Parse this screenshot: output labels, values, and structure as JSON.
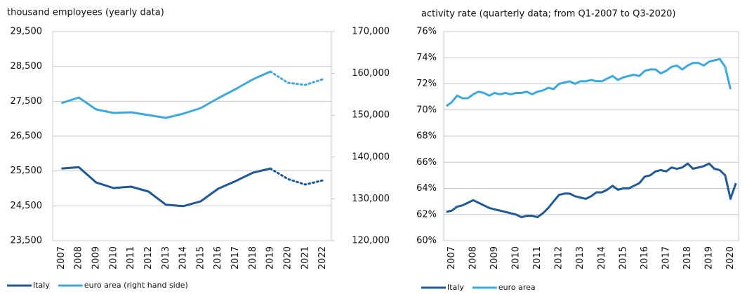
{
  "chart_data": [
    {
      "type": "line",
      "title": "thousand employees (yearly data)",
      "categories": [
        "2007",
        "2008",
        "2009",
        "2010",
        "2011",
        "2012",
        "2013",
        "2014",
        "2015",
        "2016",
        "2017",
        "2018",
        "2019",
        "2020",
        "2021",
        "2022"
      ],
      "dotted_from": "2019",
      "series": [
        {
          "name": "Italy",
          "color": "#1f5a96",
          "values": [
            25570,
            25610,
            25170,
            25010,
            25050,
            24910,
            24530,
            24490,
            24630,
            24990,
            25210,
            25450,
            25570,
            25270,
            25110,
            25230
          ]
        },
        {
          "name": "euro area (right hand side)",
          "color": "#3ea8dc",
          "axis": "y2",
          "values": [
            152890,
            154230,
            151380,
            150540,
            150710,
            150030,
            149360,
            150370,
            151710,
            154060,
            156240,
            158590,
            160440,
            157750,
            157250,
            158590
          ]
        }
      ],
      "ylim": [
        23500,
        29500
      ],
      "yticks": [
        {
          "value": 23500,
          "label": "23,500"
        },
        {
          "value": 24500,
          "label": "24,500"
        },
        {
          "value": 25500,
          "label": "25,500"
        },
        {
          "value": 26500,
          "label": "26,500"
        },
        {
          "value": 27500,
          "label": "27,500"
        },
        {
          "value": 28500,
          "label": "28,500"
        },
        {
          "value": 29500,
          "label": "29,500"
        }
      ],
      "y2lim": [
        120000,
        170000
      ],
      "y2ticks": [
        {
          "value": 120000,
          "label": "120,000"
        },
        {
          "value": 130000,
          "label": "130,000"
        },
        {
          "value": 140000,
          "label": "140,000"
        },
        {
          "value": 150000,
          "label": "150,000"
        },
        {
          "value": 160000,
          "label": "160,000"
        },
        {
          "value": 170000,
          "label": "170,000"
        }
      ],
      "grid": true
    },
    {
      "type": "line",
      "title": "activity rate (quarterly data; from Q1-2007 to Q3-2020)",
      "categories": [
        null,
        "2007",
        null,
        null,
        null,
        "2008",
        null,
        null,
        null,
        "2009",
        null,
        null,
        null,
        "2010",
        null,
        null,
        null,
        "2011",
        null,
        null,
        null,
        "2012",
        null,
        null,
        null,
        "2013",
        null,
        null,
        null,
        "2014",
        null,
        null,
        null,
        "2015",
        null,
        null,
        null,
        "2016",
        null,
        null,
        null,
        "2017",
        null,
        null,
        null,
        "2018",
        null,
        null,
        null,
        "2019",
        null,
        null,
        null,
        "2020",
        null
      ],
      "series": [
        {
          "name": "Italy",
          "color": "#1f5a96",
          "values": [
            62.2,
            62.3,
            62.6,
            62.7,
            62.9,
            63.1,
            62.9,
            62.7,
            62.5,
            62.4,
            62.3,
            62.2,
            62.1,
            62.0,
            61.8,
            61.9,
            61.9,
            61.8,
            62.1,
            62.5,
            63.0,
            63.5,
            63.6,
            63.6,
            63.4,
            63.3,
            63.2,
            63.4,
            63.7,
            63.7,
            63.9,
            64.2,
            63.9,
            64.0,
            64.0,
            64.2,
            64.4,
            64.9,
            65.0,
            65.3,
            65.4,
            65.3,
            65.6,
            65.5,
            65.6,
            65.9,
            65.5,
            65.6,
            65.7,
            65.9,
            65.5,
            65.4,
            65.0,
            63.2,
            64.4
          ]
        },
        {
          "name": "euro area",
          "color": "#3ea8dc",
          "values": [
            70.3,
            70.6,
            71.1,
            70.9,
            70.9,
            71.2,
            71.4,
            71.3,
            71.1,
            71.3,
            71.2,
            71.3,
            71.2,
            71.3,
            71.3,
            71.4,
            71.2,
            71.4,
            71.5,
            71.7,
            71.6,
            72.0,
            72.1,
            72.2,
            72.0,
            72.2,
            72.2,
            72.3,
            72.2,
            72.2,
            72.4,
            72.6,
            72.3,
            72.5,
            72.6,
            72.7,
            72.6,
            73.0,
            73.1,
            73.1,
            72.8,
            73.0,
            73.3,
            73.4,
            73.1,
            73.4,
            73.6,
            73.6,
            73.4,
            73.7,
            73.8,
            73.9,
            73.3,
            71.6,
            null
          ]
        }
      ],
      "ylim": [
        60,
        76
      ],
      "yticks": [
        {
          "value": 60,
          "label": "60%"
        },
        {
          "value": 62,
          "label": "62%"
        },
        {
          "value": 64,
          "label": "64%"
        },
        {
          "value": 66,
          "label": "66%"
        },
        {
          "value": 68,
          "label": "68%"
        },
        {
          "value": 70,
          "label": "70%"
        },
        {
          "value": 72,
          "label": "72%"
        },
        {
          "value": 74,
          "label": "74%"
        },
        {
          "value": 76,
          "label": "76%"
        }
      ],
      "grid": true
    }
  ]
}
